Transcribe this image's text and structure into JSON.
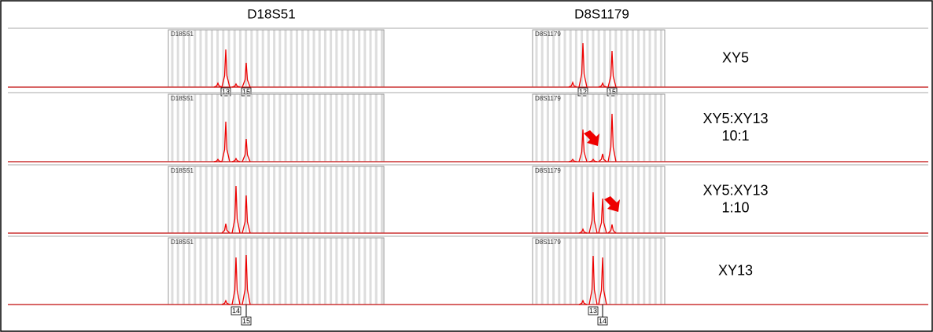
{
  "header": {
    "columns": [
      "D18S51",
      "D8S1179"
    ]
  },
  "rows": [
    {
      "label_lines": [
        "XY5"
      ],
      "panel_labels": [
        "D18S51",
        "D8S1179"
      ],
      "alleles_left": [
        "13",
        "15"
      ],
      "alleles_right": [
        "12",
        "15"
      ]
    },
    {
      "label_lines": [
        "XY5:XY13",
        "10:1"
      ],
      "panel_labels": [
        "D18S51",
        "D8S1179"
      ],
      "alleles_left": [],
      "alleles_right": []
    },
    {
      "label_lines": [
        "XY5:XY13",
        "1:10"
      ],
      "panel_labels": [
        "D18S51",
        "D8S1179"
      ],
      "alleles_left": [],
      "alleles_right": []
    },
    {
      "label_lines": [
        "XY13"
      ],
      "panel_labels": [
        "D18S51",
        "D8S1179"
      ],
      "alleles_left": [
        "14",
        "15"
      ],
      "alleles_right": [
        "13",
        "14"
      ]
    }
  ]
}
